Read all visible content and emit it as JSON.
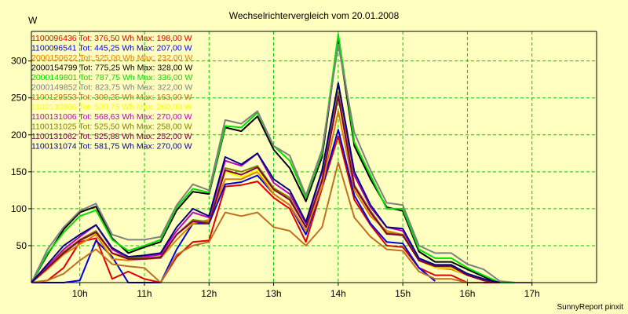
{
  "app": {
    "footer": "SunnyReport pinxit"
  },
  "colors": {
    "background": "#ffffc0",
    "grid": "#00cc00",
    "axis": "#000000"
  },
  "chart_data": {
    "type": "line",
    "title": "Wechselrichtervergleich vom 20.01.2008",
    "ylabel": "W",
    "xlabel": "",
    "grid": true,
    "legend_position": "top-left",
    "xlim": [
      9.25,
      18.0
    ],
    "ylim": [
      0,
      340
    ],
    "x_ticks": [
      10,
      11,
      12,
      13,
      14,
      15,
      16,
      17
    ],
    "x_tick_labels": [
      "10h",
      "11h",
      "12h",
      "13h",
      "14h",
      "15h",
      "16h",
      "17h"
    ],
    "y_ticks": [
      50,
      100,
      150,
      200,
      250,
      300
    ],
    "y_tick_labels": [
      "50",
      "100",
      "150",
      "200",
      "250",
      "300"
    ],
    "x": [
      9.25,
      9.5,
      9.75,
      10.0,
      10.25,
      10.5,
      10.75,
      11.0,
      11.25,
      11.5,
      11.75,
      12.0,
      12.25,
      12.5,
      12.75,
      13.0,
      13.25,
      13.5,
      13.75,
      14.0,
      14.25,
      14.5,
      14.75,
      15.0,
      15.25,
      15.5,
      15.75,
      16.0,
      16.25,
      16.5,
      16.75,
      17.0
    ],
    "series": [
      {
        "name": "1100096436 Tot: 376,50 Wh Max: 198,00 W",
        "color": "#e00000",
        "values": [
          0,
          3,
          20,
          55,
          60,
          5,
          15,
          5,
          0,
          35,
          55,
          57,
          130,
          132,
          137,
          115,
          100,
          55,
          128,
          198,
          112,
          78,
          50,
          48,
          20,
          10,
          10,
          0,
          0,
          0,
          null,
          null
        ]
      },
      {
        "name": "1100096541 Tot: 445,25 Wh Max: 207,00 W",
        "color": "#0000e0",
        "values": [
          0,
          0,
          0,
          3,
          57,
          35,
          0,
          0,
          0,
          45,
          80,
          80,
          133,
          136,
          145,
          120,
          105,
          65,
          130,
          207,
          118,
          80,
          55,
          53,
          20,
          2,
          null,
          null,
          null,
          null,
          null,
          null
        ]
      },
      {
        "name": "2000150622 Tot: 525,00 Wh Max: 232,00 W",
        "color": "#e08000",
        "values": [
          0,
          18,
          38,
          52,
          65,
          32,
          30,
          32,
          33,
          58,
          80,
          85,
          140,
          140,
          150,
          120,
          105,
          70,
          130,
          232,
          125,
          90,
          70,
          65,
          30,
          20,
          18,
          10,
          3,
          0,
          null,
          null
        ]
      },
      {
        "name": "2000154799 Tot: 775,25 Wh Max: 328,00 W",
        "color": "#000000",
        "values": [
          0,
          38,
          72,
          95,
          103,
          60,
          40,
          48,
          55,
          98,
          123,
          120,
          210,
          205,
          225,
          180,
          155,
          110,
          170,
          328,
          185,
          140,
          102,
          97,
          42,
          28,
          28,
          18,
          8,
          0,
          0,
          null
        ]
      },
      {
        "name": "2000149801 Tot: 787,75 Wh Max: 336,00 W",
        "color": "#00e000",
        "values": [
          0,
          40,
          68,
          90,
          98,
          58,
          43,
          50,
          58,
          102,
          127,
          122,
          212,
          210,
          230,
          185,
          165,
          115,
          175,
          336,
          190,
          145,
          100,
          100,
          45,
          33,
          33,
          20,
          10,
          0,
          0,
          null
        ]
      },
      {
        "name": "2000149852 Tot: 823,75 Wh Max: 322,00 W",
        "color": "#808080",
        "values": [
          0,
          45,
          75,
          97,
          107,
          65,
          58,
          58,
          62,
          105,
          133,
          125,
          220,
          215,
          232,
          185,
          172,
          118,
          180,
          322,
          203,
          152,
          108,
          105,
          50,
          40,
          40,
          25,
          18,
          2,
          0,
          0
        ]
      },
      {
        "name": "1100129553 Tot: 309,25 Wh Max: 163,00 W",
        "color": "#c07020",
        "values": [
          0,
          3,
          12,
          30,
          45,
          25,
          22,
          20,
          0,
          38,
          50,
          55,
          95,
          90,
          95,
          75,
          70,
          50,
          75,
          163,
          88,
          62,
          45,
          43,
          15,
          5,
          5,
          0,
          0,
          null,
          null,
          null
        ]
      },
      {
        "name": "1100130866 Tot: 520,75 Wh Max: 260,00 W",
        "color": "#ffff00",
        "values": [
          0,
          20,
          42,
          57,
          67,
          38,
          32,
          33,
          35,
          65,
          83,
          82,
          150,
          143,
          152,
          125,
          115,
          75,
          140,
          260,
          130,
          95,
          65,
          65,
          30,
          20,
          20,
          10,
          3,
          0,
          null,
          null
        ]
      },
      {
        "name": "1100131006 Tot: 568,63 Wh Max: 270,00 W",
        "color": "#c000c0",
        "values": [
          0,
          22,
          45,
          62,
          78,
          45,
          33,
          35,
          38,
          70,
          95,
          88,
          165,
          158,
          175,
          135,
          120,
          80,
          150,
          270,
          145,
          102,
          75,
          70,
          32,
          22,
          22,
          12,
          5,
          0,
          null,
          null
        ]
      },
      {
        "name": "1100131025 Tot: 525,50 Wh Max: 258,00 W",
        "color": "#808000",
        "values": [
          0,
          20,
          42,
          58,
          70,
          40,
          33,
          33,
          35,
          65,
          85,
          82,
          155,
          150,
          158,
          128,
          115,
          75,
          140,
          258,
          132,
          97,
          67,
          65,
          30,
          22,
          22,
          10,
          3,
          0,
          null,
          null
        ]
      },
      {
        "name": "1100131062 Tot: 525,88 Wh Max: 252,00 W",
        "color": "#800040",
        "values": [
          0,
          20,
          40,
          57,
          68,
          40,
          32,
          32,
          34,
          65,
          83,
          80,
          152,
          146,
          156,
          126,
          112,
          75,
          138,
          252,
          130,
          95,
          66,
          64,
          30,
          22,
          22,
          10,
          3,
          0,
          null,
          null
        ]
      },
      {
        "name": "1100131074 Tot: 581,75 Wh Max: 270,00 W",
        "color": "#000080",
        "values": [
          0,
          25,
          50,
          65,
          78,
          47,
          35,
          37,
          40,
          75,
          100,
          90,
          170,
          160,
          175,
          140,
          125,
          82,
          152,
          270,
          150,
          105,
          75,
          73,
          33,
          24,
          24,
          12,
          5,
          0,
          null,
          null
        ]
      }
    ]
  }
}
